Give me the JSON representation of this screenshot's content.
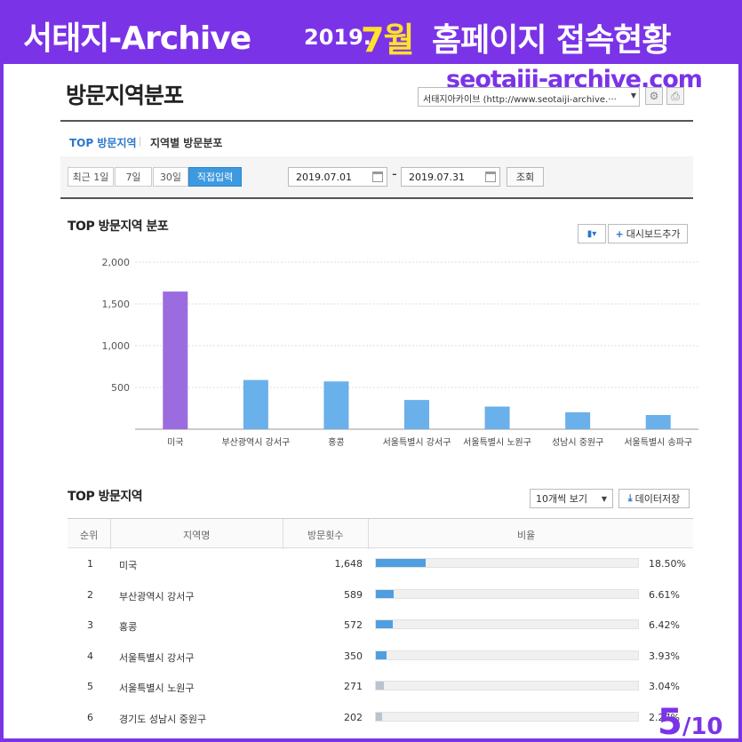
{
  "banner": {
    "title": "서태지-Archive",
    "year": "2019.",
    "month": "7월",
    "right_text": "홈페이지 접속현황"
  },
  "site_url": "seotaiji-archive.com",
  "page_title": "방문지역분포",
  "site_select": {
    "value": "서태지아카이브 (http://www.seotaiji-archive.···"
  },
  "tabs": [
    {
      "label": "TOP 방문지역",
      "active": true
    },
    {
      "label": "지역별 방문분포",
      "active": false
    }
  ],
  "periods": [
    {
      "label": "최근 1일",
      "active": false
    },
    {
      "label": "7일",
      "active": false
    },
    {
      "label": "30일",
      "active": false
    },
    {
      "label": "직접입력",
      "active": true
    }
  ],
  "date_range": {
    "start": "2019.07.01",
    "separator": "-",
    "end": "2019.07.31"
  },
  "search_label": "조회",
  "chart_section": {
    "title": "TOP 방문지역 분포",
    "chart_type_icon": "bar-chart-icon",
    "add_dashboard_label": "대시보드추가"
  },
  "chart_data": {
    "type": "bar",
    "categories": [
      "미국",
      "부산광역시 강서구",
      "홍콩",
      "서울특별시 강서구",
      "서울특별시 노원구",
      "성남시 중원구",
      "서울특별시 송파구"
    ],
    "values": [
      1648,
      589,
      572,
      350,
      271,
      202,
      170
    ],
    "ylim": [
      0,
      2000
    ],
    "yticks": [
      "2,000",
      "1,500",
      "1,000",
      "500"
    ],
    "ytick_values": [
      2000,
      1500,
      1000,
      500
    ],
    "grid": true,
    "colors": {
      "highlight": "#9b6be0",
      "default": "#6ab0ea"
    }
  },
  "table_section": {
    "title": "TOP 방문지역",
    "page_size_label": "10개씩 보기",
    "save_label": "데이터저장"
  },
  "table": {
    "headers": [
      "순위",
      "지역명",
      "방문횟수",
      "비율"
    ],
    "rows": [
      {
        "rank": "1",
        "region": "미국",
        "visits": "1,648",
        "ratio": "18.50%",
        "pct": 18.5
      },
      {
        "rank": "2",
        "region": "부산광역시 강서구",
        "visits": "589",
        "ratio": "6.61%",
        "pct": 6.61
      },
      {
        "rank": "3",
        "region": "홍콩",
        "visits": "572",
        "ratio": "6.42%",
        "pct": 6.42
      },
      {
        "rank": "4",
        "region": "서울특별시 강서구",
        "visits": "350",
        "ratio": "3.93%",
        "pct": 3.93
      },
      {
        "rank": "5",
        "region": "서울특별시 노원구",
        "visits": "271",
        "ratio": "3.04%",
        "pct": 3.04
      },
      {
        "rank": "6",
        "region": "경기도 성남시 중원구",
        "visits": "202",
        "ratio": "2.27%",
        "pct": 2.27
      }
    ],
    "colors": {
      "high": "#4f9ee0",
      "low": "#b8c4d0"
    }
  },
  "pager": {
    "current": "5",
    "total": "/10"
  }
}
